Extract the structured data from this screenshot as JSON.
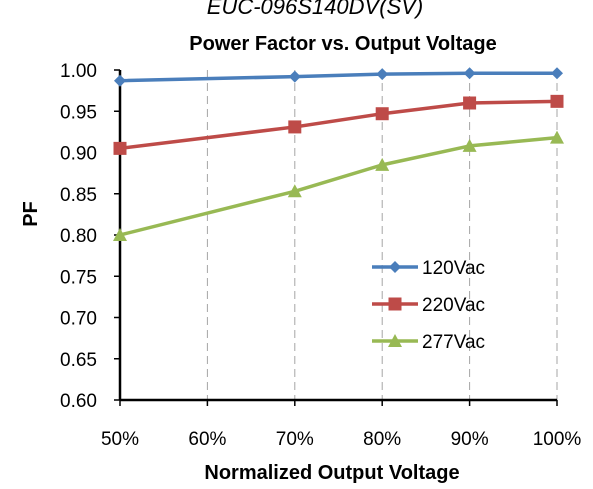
{
  "header": {
    "top_text": "EUC-096S140DV(SV)"
  },
  "chart_data": {
    "type": "line",
    "title": "Power Factor vs. Output Voltage",
    "xlabel": "Normalized Output Voltage",
    "ylabel": "PF",
    "x": [
      50,
      70,
      80,
      90,
      100
    ],
    "x_ticks": [
      "50%",
      "60%",
      "70%",
      "80%",
      "90%",
      "100%"
    ],
    "xlim": [
      50,
      100
    ],
    "y_ticks": [
      "0.60",
      "0.65",
      "0.70",
      "0.75",
      "0.80",
      "0.85",
      "0.90",
      "0.95",
      "1.00"
    ],
    "ylim": [
      0.6,
      1.0
    ],
    "grid": "vertical dashed",
    "legend_position": "lower-right",
    "series": [
      {
        "name": "120Vac",
        "color": "#4a7ebb",
        "marker": "diamond",
        "values": [
          0.987,
          0.992,
          0.995,
          0.996,
          0.996
        ]
      },
      {
        "name": "220Vac",
        "color": "#be4b48",
        "marker": "square",
        "values": [
          0.905,
          0.931,
          0.947,
          0.96,
          0.962
        ]
      },
      {
        "name": "277Vac",
        "color": "#98b954",
        "marker": "triangle",
        "values": [
          0.8,
          0.853,
          0.885,
          0.908,
          0.918
        ]
      }
    ]
  }
}
